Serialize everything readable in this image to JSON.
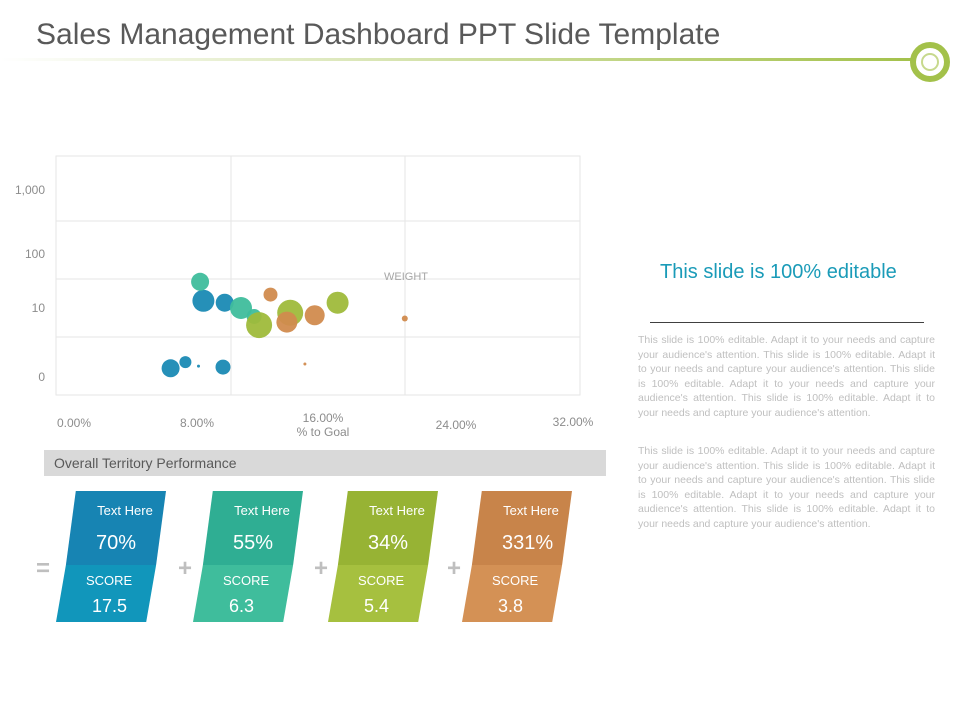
{
  "slide": {
    "title": "Sales Management Dashboard PPT Slide Template",
    "accent_color": "#a3c14a"
  },
  "chart_data": {
    "type": "scatter",
    "subtype": "bubble",
    "xlabel": "% to Goal",
    "ylabel": "",
    "x_ticks": [
      "0.00%",
      "8.00%",
      "16.00%",
      "24.00%",
      "32.00%"
    ],
    "y_ticks": [
      "0",
      "10",
      "100",
      "1,000"
    ],
    "xlim": [
      0,
      32
    ],
    "y_scale": "log",
    "annotation": "WEIGHT",
    "grid": true,
    "legend": "none",
    "colors": [
      "#1a8ab4",
      "#3fbd9c",
      "#9fbb3b",
      "#d18b4e"
    ],
    "points": [
      {
        "x": 7.0,
        "y": 1.3,
        "size": 9,
        "color": 0
      },
      {
        "x": 7.9,
        "y": 1.6,
        "size": 6,
        "color": 0
      },
      {
        "x": 8.7,
        "y": 1.4,
        "size": 1.5,
        "color": 0
      },
      {
        "x": 9.0,
        "y": 13.5,
        "size": 11,
        "color": 0
      },
      {
        "x": 10.3,
        "y": 12.5,
        "size": 9,
        "color": 0
      },
      {
        "x": 10.2,
        "y": 1.35,
        "size": 7.5,
        "color": 0
      },
      {
        "x": 8.8,
        "y": 30,
        "size": 9,
        "color": 1
      },
      {
        "x": 11.3,
        "y": 10,
        "size": 11,
        "color": 1
      },
      {
        "x": 12.1,
        "y": 7.5,
        "size": 7.5,
        "color": 1
      },
      {
        "x": 12.4,
        "y": 5.6,
        "size": 13,
        "color": 2
      },
      {
        "x": 14.3,
        "y": 8.5,
        "size": 13,
        "color": 2
      },
      {
        "x": 17.2,
        "y": 12.5,
        "size": 11,
        "color": 2
      },
      {
        "x": 13.1,
        "y": 17.5,
        "size": 7,
        "color": 3
      },
      {
        "x": 14.1,
        "y": 6.2,
        "size": 10.5,
        "color": 3
      },
      {
        "x": 15.8,
        "y": 7.8,
        "size": 10,
        "color": 3
      },
      {
        "x": 15.2,
        "y": 1.5,
        "size": 1.5,
        "color": 3
      },
      {
        "x": 21.3,
        "y": 7,
        "size": 3,
        "color": 3
      }
    ]
  },
  "performance": {
    "header": "Overall Territory Performance",
    "cards": [
      {
        "label": "Text Here",
        "value": "70%",
        "score_label": "SCORE",
        "score": "17.5",
        "color_top": "#1784b3",
        "color_bot": "#1196bb"
      },
      {
        "label": "Text Here",
        "value": "55%",
        "score_label": "SCORE",
        "score": "6.3",
        "color_top": "#2fae93",
        "color_bot": "#3fbd9c"
      },
      {
        "label": "Text Here",
        "value": "34%",
        "score_label": "SCORE",
        "score": "5.4",
        "color_top": "#97b334",
        "color_bot": "#a6c03f"
      },
      {
        "label": "Text Here",
        "value": "331%",
        "score_label": "SCORE",
        "score": "3.8",
        "color_top": "#c8844a",
        "color_bot": "#d49155"
      }
    ],
    "operators": [
      "=",
      "+",
      "+",
      "+"
    ]
  },
  "side": {
    "heading": "This slide is 100% editable",
    "paragraphs": [
      "This slide is 100% editable. Adapt it to your needs and capture your audience's attention. This slide is 100% editable. Adapt it to your needs and capture your audience's attention. This slide is 100% editable. Adapt it to your needs and capture your audience's attention. This slide is 100% editable. Adapt it to your needs and capture your audience's attention.",
      "This slide is 100% editable. Adapt it to your needs and capture your audience's attention. This slide is 100% editable. Adapt it to your needs and capture your audience's attention. This slide is 100% editable. Adapt it to your needs and capture your audience's attention. This slide is 100% editable. Adapt it to your needs and capture your audience's attention."
    ]
  }
}
